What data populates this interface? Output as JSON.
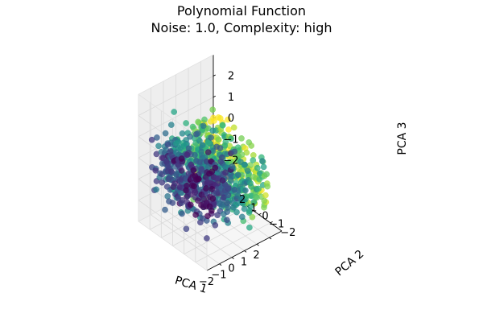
{
  "chart_data": {
    "type": "scatter",
    "projection": "3d",
    "title": "Polynomial Function",
    "subtitle": "Noise: 1.0, Complexity: high",
    "xlabel": "PCA 1",
    "ylabel": "PCA 2",
    "zlabel": "PCA 3",
    "xlim": [
      -3,
      3
    ],
    "ylim": [
      -3,
      3
    ],
    "zlim": [
      -3,
      3
    ],
    "xticks": [
      "−2",
      "−1",
      "0",
      "1",
      "2"
    ],
    "yticks": [
      "−2",
      "−1",
      "0",
      "1",
      "2"
    ],
    "zticks": [
      "−2",
      "−1",
      "0",
      "1",
      "2"
    ],
    "xtick_values": [
      -2,
      -1,
      0,
      1,
      2
    ],
    "ytick_values": [
      -2,
      -1,
      0,
      1,
      2
    ],
    "ztick_values": [
      -2,
      -1,
      0,
      1,
      2
    ],
    "grid": true,
    "colormap": "viridis",
    "point_alpha": 0.75,
    "point_count": 900,
    "point_cloud": {
      "pca1_range": [
        -2.6,
        2.6
      ],
      "pca2_range": [
        -2.6,
        2.6
      ],
      "pca3_range": [
        -2.5,
        1.6
      ],
      "color_trend": "PCA 1 and PCA 2 increase toward yellow; PCA 1 low is dark purple"
    },
    "colors": {
      "pane": "#f2f2f2",
      "grid": "#d9d9d9",
      "axis": "#000000"
    }
  }
}
